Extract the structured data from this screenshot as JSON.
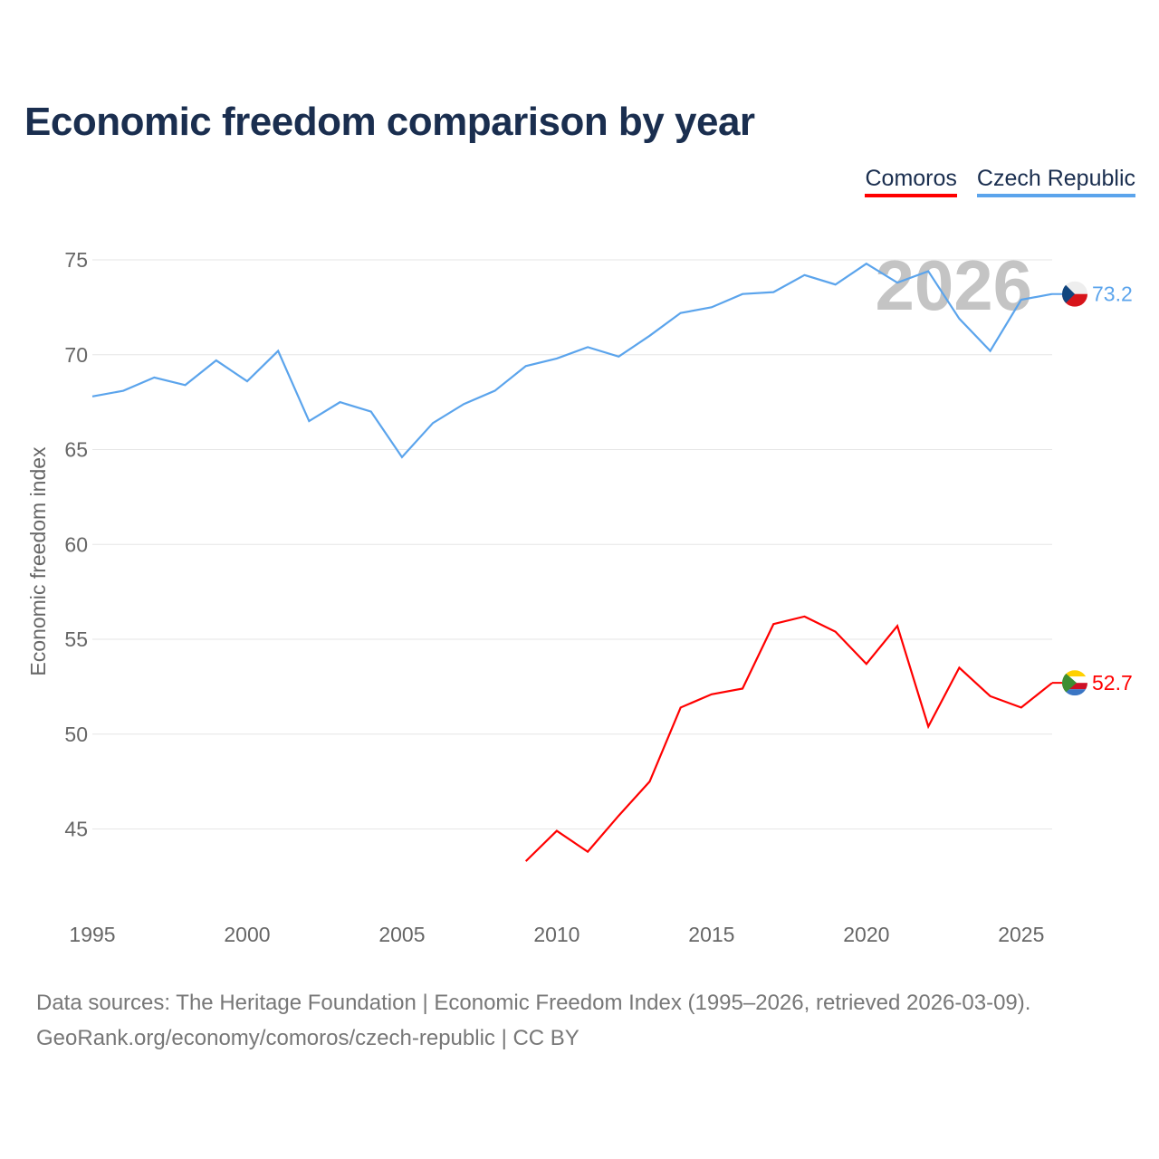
{
  "chart_data": {
    "type": "line",
    "title": "Economic freedom comparison by year",
    "xlabel": "",
    "ylabel": "Economic freedom index",
    "xlim": [
      1995,
      2026
    ],
    "ylim": [
      41.5,
      77.5
    ],
    "x_ticks": [
      1995,
      2000,
      2005,
      2010,
      2015,
      2020,
      2025
    ],
    "y_ticks": [
      45,
      50,
      55,
      60,
      65,
      70,
      75
    ],
    "grid": true,
    "legend_placement": "top-right",
    "watermark_year": "2026",
    "series": [
      {
        "name": "Comoros",
        "color": "#ff0000",
        "end_label": "52.7",
        "x": [
          2009,
          2010,
          2011,
          2012,
          2013,
          2014,
          2015,
          2016,
          2017,
          2018,
          2019,
          2020,
          2021,
          2022,
          2023,
          2024,
          2025,
          2026
        ],
        "values": [
          43.3,
          44.9,
          43.8,
          45.7,
          47.5,
          51.4,
          52.1,
          52.4,
          55.8,
          56.2,
          55.4,
          53.7,
          55.7,
          50.4,
          53.5,
          52.0,
          51.4,
          52.7
        ]
      },
      {
        "name": "Czech Republic",
        "color": "#5ba4ec",
        "end_label": "73.2",
        "x": [
          1995,
          1996,
          1997,
          1998,
          1999,
          2000,
          2001,
          2002,
          2003,
          2004,
          2005,
          2006,
          2007,
          2008,
          2009,
          2010,
          2011,
          2012,
          2013,
          2014,
          2015,
          2016,
          2017,
          2018,
          2019,
          2020,
          2021,
          2022,
          2023,
          2024,
          2025,
          2026
        ],
        "values": [
          67.8,
          68.1,
          68.8,
          68.4,
          69.7,
          68.6,
          70.2,
          66.5,
          67.5,
          67.0,
          64.6,
          66.4,
          67.4,
          68.1,
          69.4,
          69.8,
          70.4,
          69.9,
          71.0,
          72.2,
          72.5,
          73.2,
          73.3,
          74.2,
          73.7,
          74.8,
          73.8,
          74.4,
          71.9,
          70.2,
          72.9,
          73.2
        ]
      }
    ]
  },
  "footer": {
    "line1": "Data sources: The Heritage Foundation | Economic Freedom Index (1995–2026, retrieved 2026-03-09).",
    "line2": "GeoRank.org/economy/comoros/czech-republic | CC BY"
  }
}
